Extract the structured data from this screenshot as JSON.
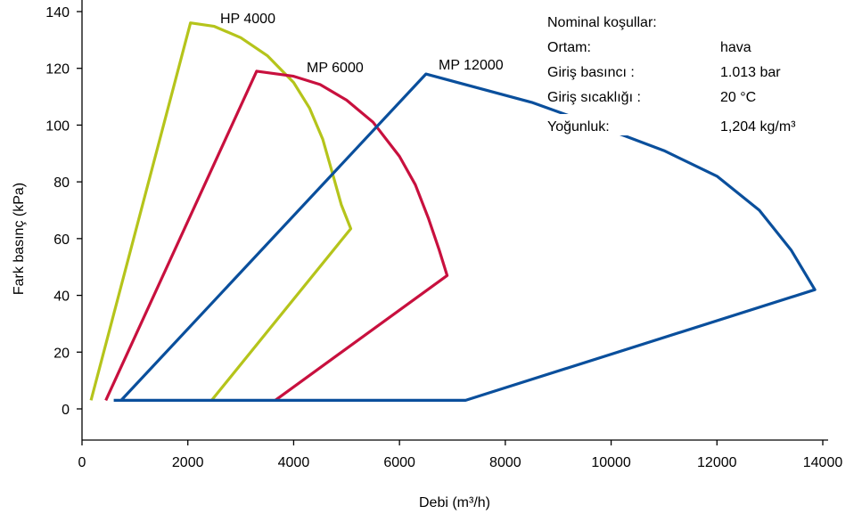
{
  "chart_data": {
    "type": "line",
    "xlabel": "Debi (m³/h)",
    "ylabel": "Fark basınç  (kPa)",
    "xlim": [
      0,
      14000
    ],
    "ylim": [
      -5,
      145
    ],
    "xticks": [
      "0",
      "2000",
      "4000",
      "6000",
      "8000",
      "10000",
      "12000",
      "14000"
    ],
    "yticks": [
      "0",
      "20",
      "40",
      "60",
      "80",
      "100",
      "120",
      "140"
    ],
    "grid": false,
    "series": [
      {
        "name": "HP 4000",
        "color": "#b5c41b",
        "points": [
          [
            170,
            3
          ],
          [
            2050,
            136
          ],
          [
            2500,
            134.8
          ],
          [
            3000,
            130.8
          ],
          [
            3500,
            124.5
          ],
          [
            4000,
            115
          ],
          [
            4300,
            106
          ],
          [
            4550,
            95
          ],
          [
            4750,
            82
          ],
          [
            4900,
            72
          ],
          [
            5080,
            63.5
          ],
          [
            2450,
            3
          ]
        ]
      },
      {
        "name": "MP 6000",
        "color": "#c8103e",
        "points": [
          [
            450,
            3
          ],
          [
            3300,
            119
          ],
          [
            4000,
            117.2
          ],
          [
            4500,
            114.3
          ],
          [
            5000,
            108.8
          ],
          [
            5500,
            101
          ],
          [
            6000,
            89
          ],
          [
            6300,
            79
          ],
          [
            6550,
            67
          ],
          [
            6750,
            56
          ],
          [
            6900,
            47
          ],
          [
            3650,
            3
          ]
        ]
      },
      {
        "name": "MP 12000",
        "color": "#0a4f9c",
        "points": [
          [
            740,
            3
          ],
          [
            6500,
            118
          ],
          [
            8500,
            108
          ],
          [
            10000,
            98
          ],
          [
            11000,
            91
          ],
          [
            12000,
            82
          ],
          [
            12800,
            70
          ],
          [
            13400,
            56
          ],
          [
            13850,
            42
          ],
          [
            7250,
            3
          ],
          [
            600,
            3
          ]
        ]
      }
    ]
  },
  "conditions": {
    "title": "Nominal koşullar:",
    "rows": [
      {
        "label": "Ortam:",
        "value": "hava"
      },
      {
        "label": "Giriş basıncı :",
        "value": "1.013 bar"
      },
      {
        "label": "Giriş sıcaklığı :",
        "value": "20 °C"
      },
      {
        "label": "Yoğunluk:",
        "value": "1,204 kg/m³"
      }
    ]
  }
}
